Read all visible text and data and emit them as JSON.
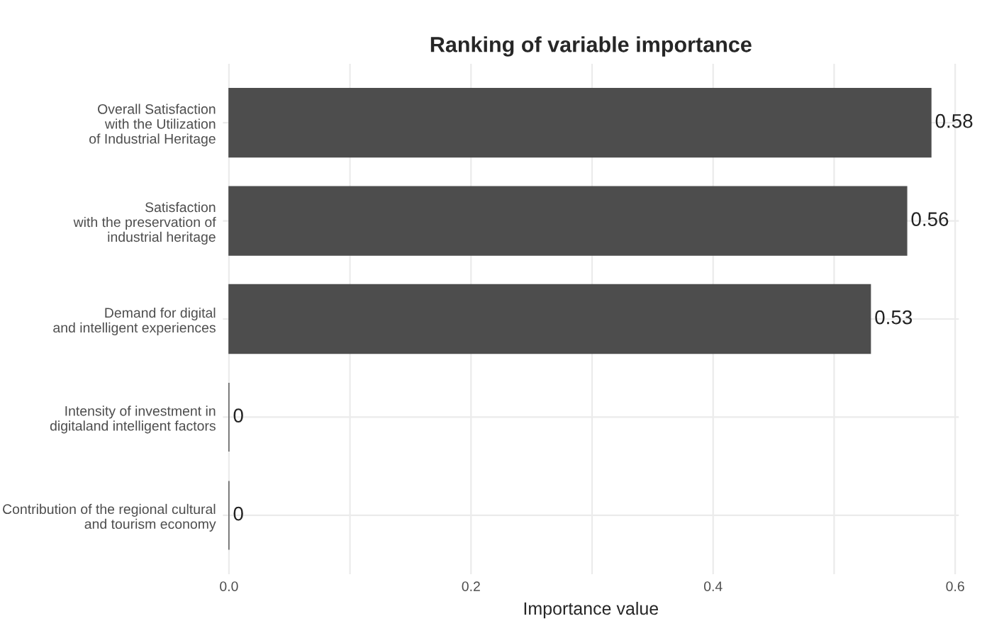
{
  "chart_data": {
    "type": "bar",
    "orientation": "horizontal",
    "title": "Ranking of variable importance",
    "xlabel": "Importance value",
    "categories": [
      "Overall Satisfaction\nwith the Utilization\nof Industrial Heritage",
      "Satisfaction\nwith the preservation of\nindustrial heritage",
      "Demand for digital\nand intelligent experiences",
      "Intensity of investment in\ndigitaland intelligent factors",
      "Contribution of the regional cultural\nand tourism economy"
    ],
    "values": [
      0.58,
      0.56,
      0.53,
      0,
      0
    ],
    "color": "#4d4d4d",
    "data_labels": true,
    "xlim": [
      -0.005,
      0.603
    ],
    "xticks": [
      {
        "value": 0,
        "label": "0.0"
      },
      {
        "value": 0.1,
        "label": null
      },
      {
        "value": 0.2,
        "label": "0.2"
      },
      {
        "value": 0.3,
        "label": null
      },
      {
        "value": 0.4,
        "label": "0.4"
      },
      {
        "value": 0.5,
        "label": null
      },
      {
        "value": 0.6,
        "label": "0.6"
      }
    ],
    "grid": true
  }
}
